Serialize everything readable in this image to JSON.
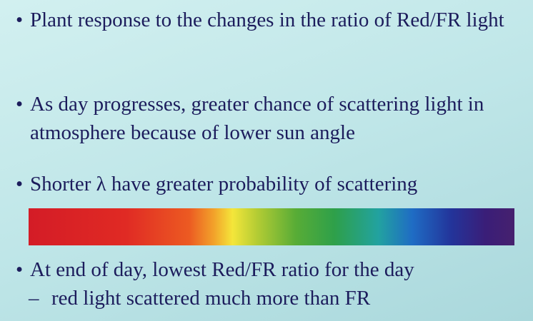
{
  "bullets": [
    {
      "text": "Plant response to the changes in the ratio of Red/FR light"
    },
    {
      "text": "As day progresses, greater chance of scattering light in atmosphere because of lower sun angle"
    },
    {
      "text": "Shorter λ have greater probability of scattering"
    },
    {
      "text": "At end of day, lowest Red/FR ratio for the day",
      "subbullets": [
        "red light scattered much more than FR"
      ]
    }
  ]
}
